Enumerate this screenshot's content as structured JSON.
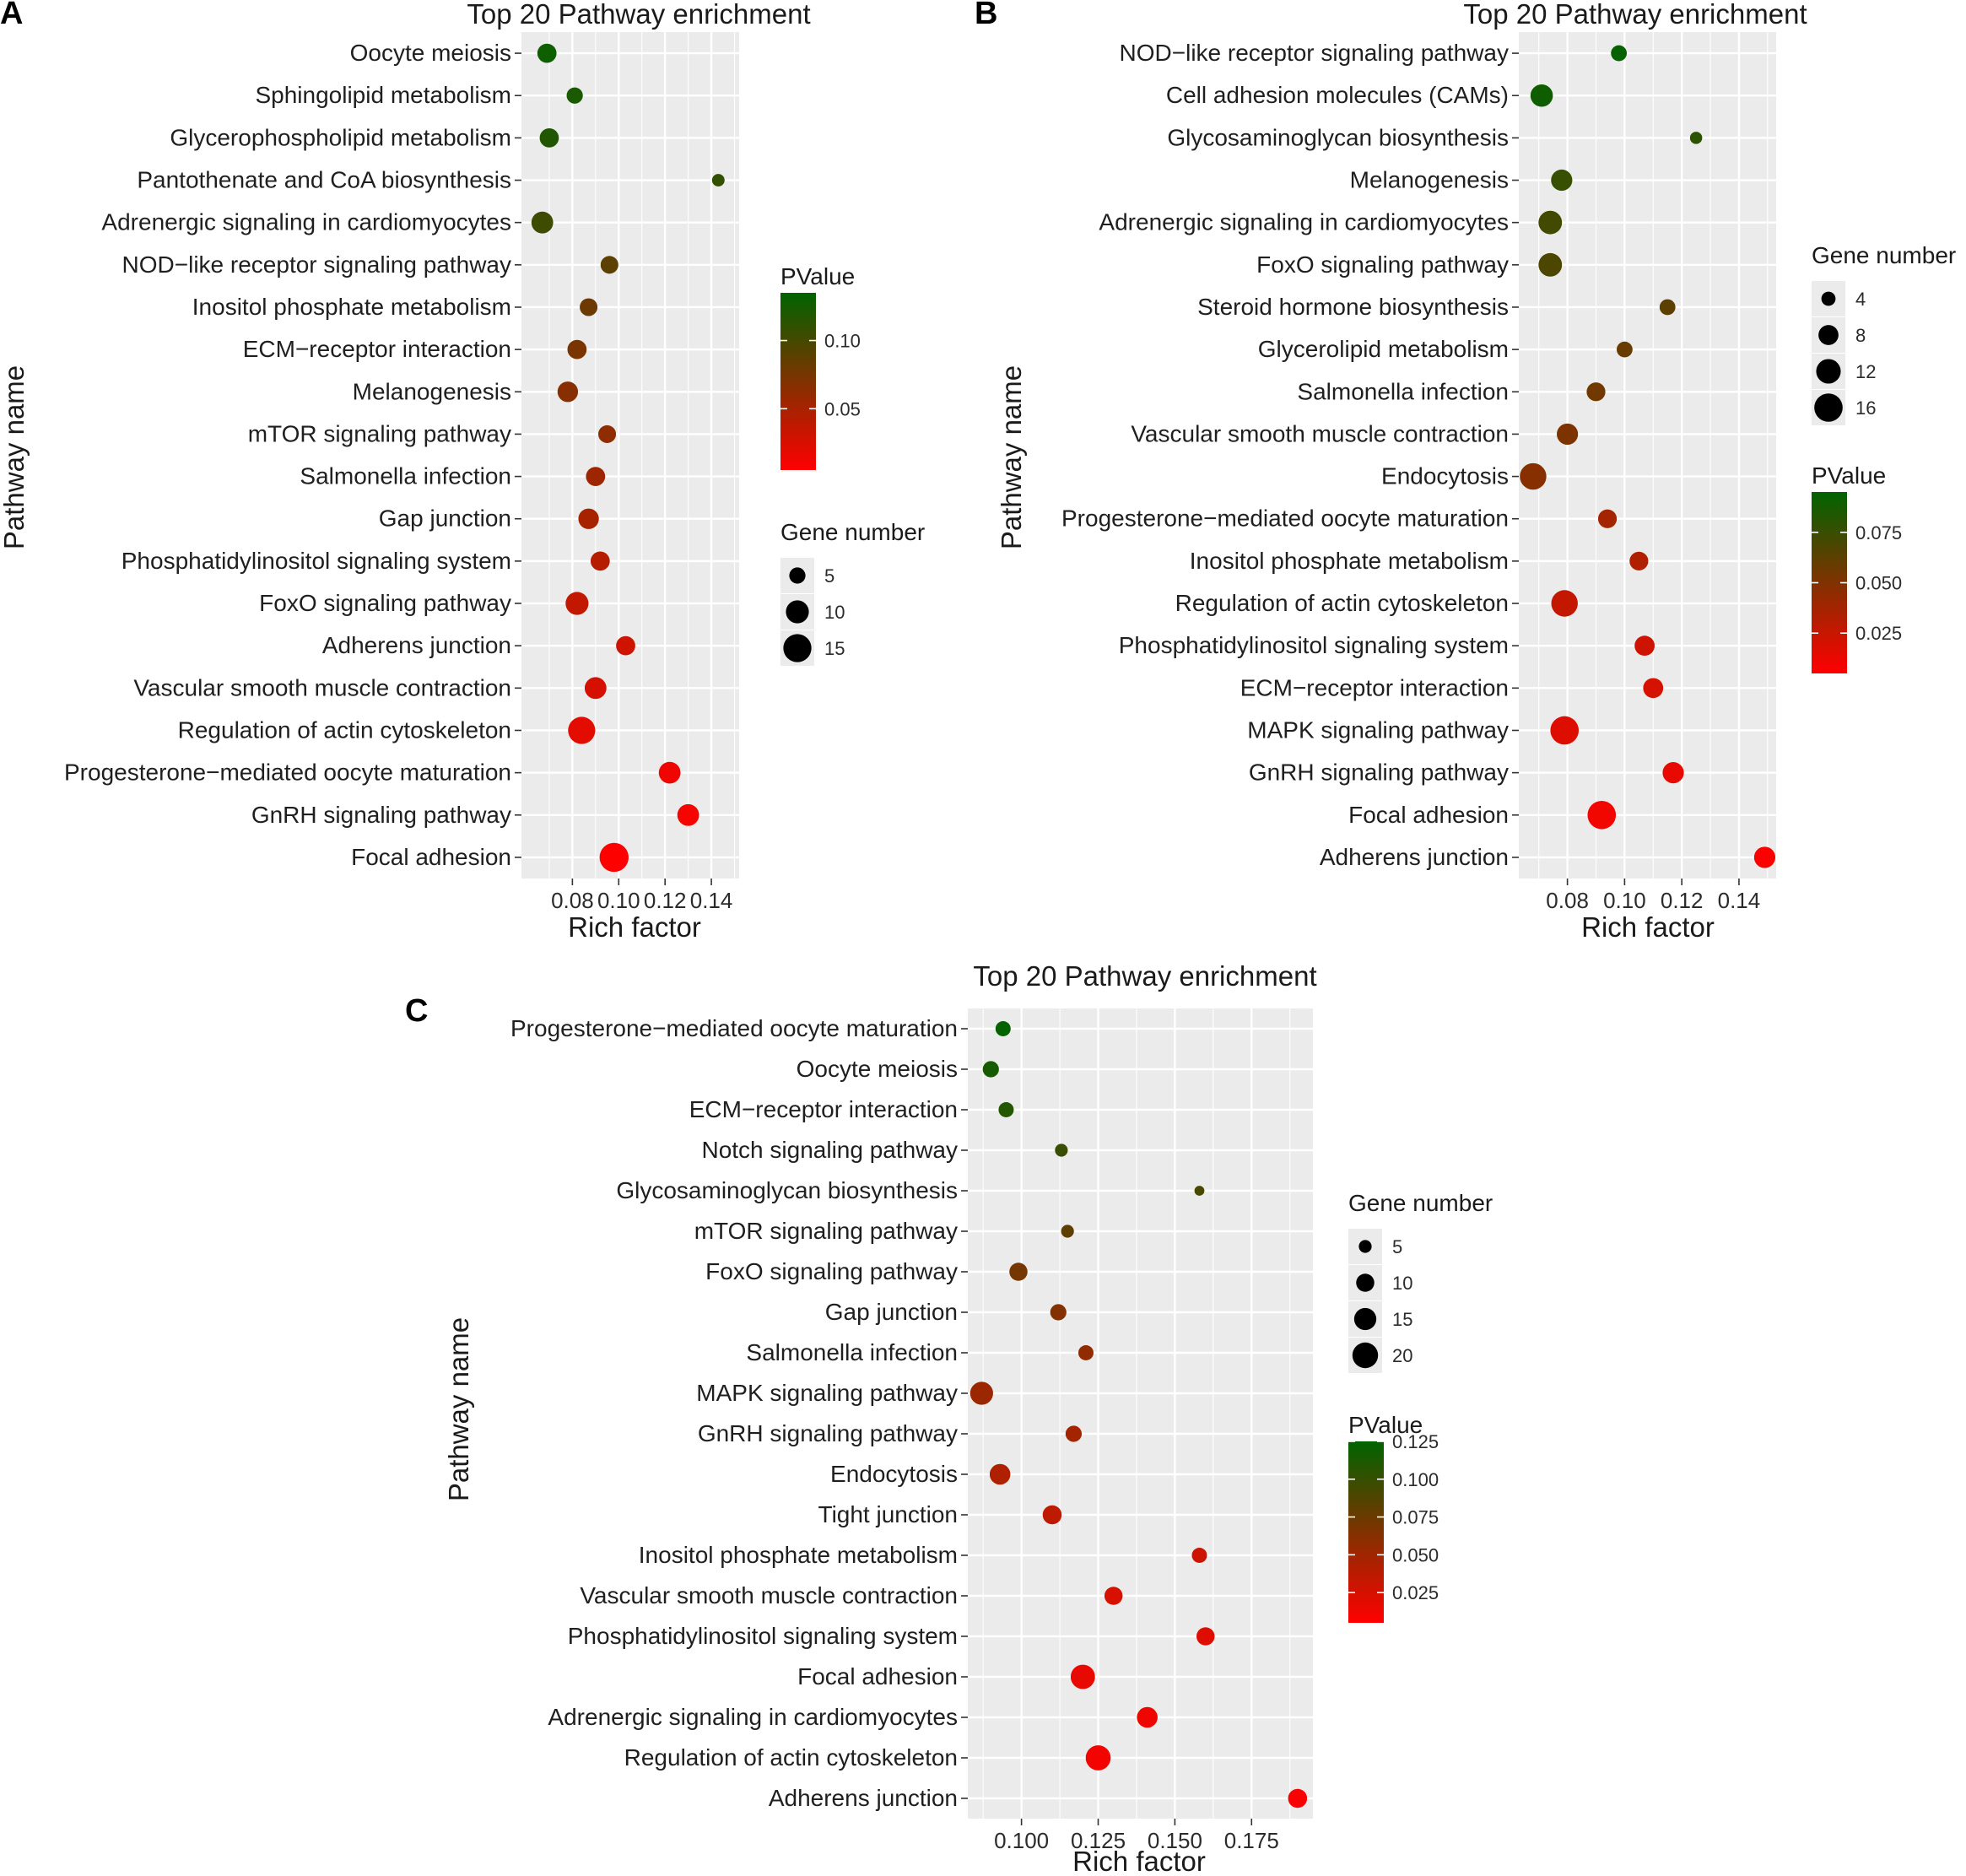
{
  "chart_data": [
    {
      "panel": "A",
      "type": "scatter",
      "title": "Top 20 Pathway enrichment",
      "xlabel": "Rich factor",
      "ylabel": "Pathway name",
      "xlim": [
        0.058,
        0.152
      ],
      "xticks": [
        0.08,
        0.1,
        0.12,
        0.14
      ],
      "xtick_labels": [
        "0.08",
        "0.10",
        "0.12",
        "0.14"
      ],
      "size_legend": {
        "title": "Gene number",
        "values": [
          5,
          10,
          15
        ],
        "labels": [
          "5",
          "10",
          "15"
        ]
      },
      "color_legend": {
        "title": "PValue",
        "min": 0.005,
        "max": 0.135,
        "ticks": [
          0.05,
          0.1
        ],
        "labels": [
          "0.05",
          "0.10"
        ]
      },
      "categories": [
        "Oocyte meiosis",
        "Sphingolipid metabolism",
        "Glycerophospholipid metabolism",
        "Pantothenate and CoA biosynthesis",
        "Adrenergic signaling in cardiomyocytes",
        "NOD−like receptor signaling pathway",
        "Inositol phosphate metabolism",
        "ECM−receptor interaction",
        "Melanogenesis",
        "mTOR signaling pathway",
        "Salmonella infection",
        "Gap junction",
        "Phosphatidylinositol signaling system",
        "FoxO signaling pathway",
        "Adherens junction",
        "Vascular smooth muscle contraction",
        "Regulation of actin cytoskeleton",
        "Progesterone−mediated oocyte maturation",
        "GnRH signaling pathway",
        "Focal adhesion"
      ],
      "rich_factor": [
        0.069,
        0.081,
        0.07,
        0.143,
        0.067,
        0.096,
        0.087,
        0.082,
        0.078,
        0.095,
        0.09,
        0.087,
        0.092,
        0.082,
        0.103,
        0.09,
        0.084,
        0.122,
        0.13,
        0.098
      ],
      "gene_number": [
        7,
        5,
        7,
        3,
        9,
        6,
        6,
        7,
        8,
        6,
        7,
        8,
        7,
        10,
        7,
        9,
        14,
        9,
        9,
        16
      ],
      "pvalue": [
        0.128,
        0.122,
        0.118,
        0.11,
        0.104,
        0.088,
        0.08,
        0.073,
        0.066,
        0.062,
        0.055,
        0.05,
        0.042,
        0.036,
        0.03,
        0.026,
        0.02,
        0.013,
        0.01,
        0.006
      ]
    },
    {
      "panel": "B",
      "type": "scatter",
      "title": "Top 20 Pathway enrichment",
      "xlabel": "Rich factor",
      "ylabel": "Pathway name",
      "xlim": [
        0.063,
        0.153
      ],
      "xticks": [
        0.08,
        0.1,
        0.12,
        0.14
      ],
      "xtick_labels": [
        "0.08",
        "0.10",
        "0.12",
        "0.14"
      ],
      "size_legend": {
        "title": "Gene number",
        "values": [
          4,
          8,
          12,
          16
        ],
        "labels": [
          "4",
          "8",
          "12",
          "16"
        ]
      },
      "color_legend": {
        "title": "PValue",
        "min": 0.005,
        "max": 0.095,
        "ticks": [
          0.025,
          0.05,
          0.075
        ],
        "labels": [
          "0.025",
          "0.050",
          "0.075"
        ]
      },
      "categories": [
        "NOD−like receptor signaling pathway",
        "Cell adhesion molecules (CAMs)",
        "Glycosaminoglycan biosynthesis",
        "Melanogenesis",
        "Adrenergic signaling in cardiomyocytes",
        "FoxO signaling pathway",
        "Steroid hormone biosynthesis",
        "Glycerolipid metabolism",
        "Salmonella infection",
        "Vascular smooth muscle contraction",
        "Endocytosis",
        "Progesterone−mediated oocyte maturation",
        "Inositol phosphate metabolism",
        "Regulation of actin cytoskeleton",
        "Phosphatidylinositol signaling system",
        "ECM−receptor interaction",
        "MAPK signaling pathway",
        "GnRH signaling pathway",
        "Focal adhesion",
        "Adherens junction"
      ],
      "rich_factor": [
        0.098,
        0.071,
        0.125,
        0.078,
        0.074,
        0.074,
        0.115,
        0.1,
        0.09,
        0.08,
        0.068,
        0.094,
        0.105,
        0.079,
        0.107,
        0.11,
        0.079,
        0.117,
        0.092,
        0.149
      ],
      "gene_number": [
        5,
        10,
        3,
        9,
        11,
        11,
        5,
        5,
        7,
        9,
        14,
        7,
        7,
        14,
        8,
        8,
        16,
        9,
        16,
        9
      ],
      "pvalue": [
        0.093,
        0.09,
        0.08,
        0.076,
        0.072,
        0.068,
        0.062,
        0.058,
        0.055,
        0.051,
        0.047,
        0.037,
        0.033,
        0.026,
        0.023,
        0.02,
        0.017,
        0.013,
        0.01,
        0.007
      ]
    },
    {
      "panel": "C",
      "type": "scatter",
      "title": "Top 20 Pathway enrichment",
      "xlabel": "Rich factor",
      "ylabel": "Pathway name",
      "xlim": [
        0.0825,
        0.195
      ],
      "xticks": [
        0.1,
        0.125,
        0.15,
        0.175
      ],
      "xtick_labels": [
        "0.100",
        "0.125",
        "0.150",
        "0.175"
      ],
      "size_legend": {
        "title": "Gene number",
        "values": [
          5,
          10,
          15,
          20
        ],
        "labels": [
          "5",
          "10",
          "15",
          "20"
        ]
      },
      "color_legend": {
        "title": "PValue",
        "min": 0.005,
        "max": 0.125,
        "ticks": [
          0.025,
          0.05,
          0.075,
          0.1,
          0.125
        ],
        "labels": [
          "0.025",
          "0.050",
          "0.075",
          "0.100",
          "0.125"
        ]
      },
      "categories": [
        "Progesterone−mediated oocyte maturation",
        "Oocyte meiosis",
        "ECM−receptor interaction",
        "Notch signaling pathway",
        "Glycosaminoglycan biosynthesis",
        "mTOR signaling pathway",
        "FoxO signaling pathway",
        "Gap junction",
        "Salmonella infection",
        "MAPK signaling pathway",
        "GnRH signaling pathway",
        "Endocytosis",
        "Tight junction",
        "Inositol phosphate metabolism",
        "Vascular smooth muscle contraction",
        "Phosphatidylinositol signaling system",
        "Focal adhesion",
        "Adrenergic signaling in cardiomyocytes",
        "Regulation of actin cytoskeleton",
        "Adherens junction"
      ],
      "rich_factor": [
        0.094,
        0.09,
        0.095,
        0.113,
        0.158,
        0.115,
        0.099,
        0.112,
        0.121,
        0.087,
        0.117,
        0.093,
        0.11,
        0.158,
        0.13,
        0.16,
        0.12,
        0.141,
        0.125,
        0.19
      ],
      "gene_number": [
        7,
        8,
        7,
        5,
        3,
        5,
        10,
        8,
        7,
        16,
        8,
        13,
        11,
        7,
        10,
        10,
        18,
        13,
        19,
        11
      ],
      "pvalue": [
        0.122,
        0.115,
        0.109,
        0.098,
        0.09,
        0.081,
        0.07,
        0.063,
        0.057,
        0.052,
        0.048,
        0.043,
        0.036,
        0.029,
        0.024,
        0.02,
        0.016,
        0.012,
        0.01,
        0.007
      ]
    }
  ]
}
